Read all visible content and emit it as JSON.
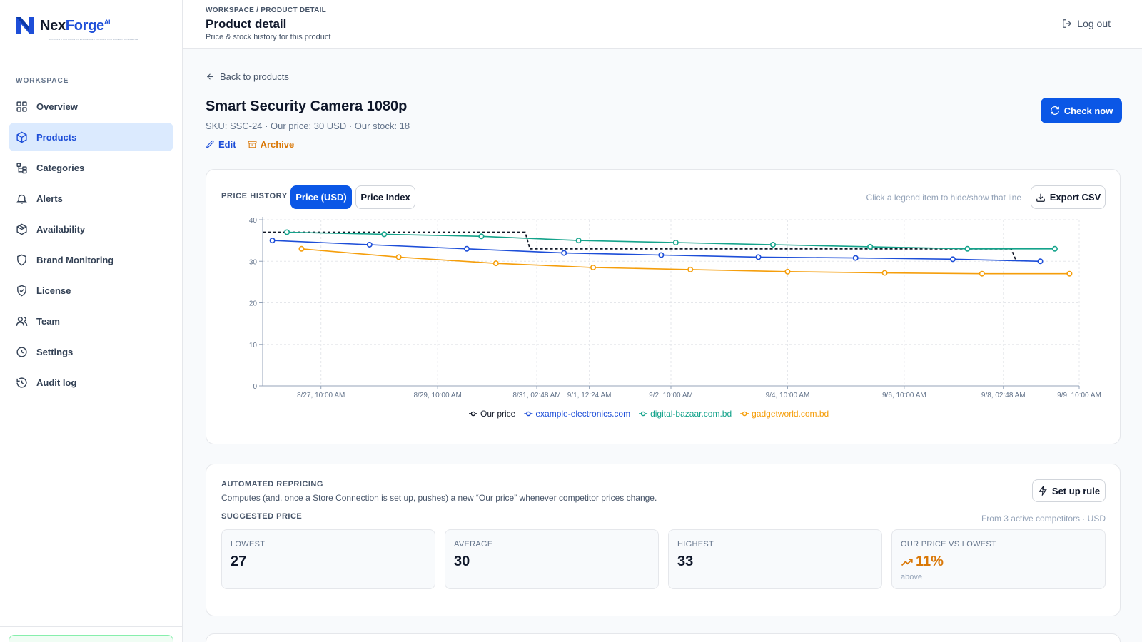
{
  "brand": {
    "name_a": "Nex",
    "name_b": "Forge",
    "suffix": "AI",
    "tagline": "AI COMPETITOR PRICE INTELLIGENCE PLATFORM FOR MODERN COMMERCE"
  },
  "sidebar": {
    "section": "WORKSPACE",
    "items": [
      {
        "label": "Overview",
        "icon": "grid-icon"
      },
      {
        "label": "Products",
        "icon": "box-icon",
        "active": true
      },
      {
        "label": "Categories",
        "icon": "tree-icon"
      },
      {
        "label": "Alerts",
        "icon": "bell-icon"
      },
      {
        "label": "Availability",
        "icon": "package-icon"
      },
      {
        "label": "Brand Monitoring",
        "icon": "shield-icon"
      },
      {
        "label": "License",
        "icon": "shield-check-icon"
      },
      {
        "label": "Team",
        "icon": "users-icon"
      },
      {
        "label": "Settings",
        "icon": "clock-icon"
      },
      {
        "label": "Audit log",
        "icon": "history-icon"
      }
    ]
  },
  "header": {
    "breadcrumb": "WORKSPACE / PRODUCT DETAIL",
    "title": "Product detail",
    "subtitle": "Price & stock history for this product",
    "logout": "Log out"
  },
  "product": {
    "back": "Back to products",
    "title": "Smart Security Camera 1080p",
    "meta": "SKU: SSC-24 · Our price: 30 USD · Our stock: 18",
    "edit": "Edit",
    "archive": "Archive",
    "check_now": "Check now"
  },
  "chart_panel": {
    "label": "PRICE HISTORY",
    "tab_active": "Price (USD)",
    "tab_inactive": "Price Index",
    "hint": "Click a legend item to hide/show that line",
    "export": "Export CSV"
  },
  "chart_data": {
    "type": "line",
    "ylim": [
      0,
      40
    ],
    "y_ticks": [
      0,
      10,
      20,
      30,
      40
    ],
    "x_ticks": [
      "8/27, 10:00 AM",
      "8/29, 10:00 AM",
      "8/31, 02:48 AM",
      "9/1, 12:24 AM",
      "9/2, 10:00 AM",
      "9/4, 10:00 AM",
      "9/6, 10:00 AM",
      "9/8, 02:48 AM",
      "9/9, 10:00 AM"
    ],
    "x_tick_hours": [
      24,
      72,
      112.8,
      134.4,
      168,
      216,
      264,
      304.8,
      336
    ],
    "x_range_hours": [
      0,
      336
    ],
    "grid": true,
    "legend": "bottom-center",
    "series": [
      {
        "name": "Our price",
        "color": "#111827",
        "dashed": true,
        "step": true,
        "x_hours": [
          0,
          2,
          108,
          110,
          210,
          308,
          310
        ],
        "values": [
          37,
          37,
          37,
          33,
          33,
          33,
          30.2
        ]
      },
      {
        "name": "example-electronics.com",
        "color": "#1d4ed8",
        "x_hours": [
          4,
          44,
          84,
          124,
          164,
          204,
          244,
          284,
          320
        ],
        "values": [
          35,
          34,
          33,
          32,
          31.5,
          31,
          30.8,
          30.5,
          30
        ]
      },
      {
        "name": "digital-bazaar.com.bd",
        "color": "#14a38b",
        "x_hours": [
          10,
          50,
          90,
          130,
          170,
          210,
          250,
          290,
          326
        ],
        "values": [
          37,
          36.5,
          36,
          35,
          34.5,
          34,
          33.5,
          33,
          33
        ]
      },
      {
        "name": "gadgetworld.com.bd",
        "color": "#f59e0b",
        "x_hours": [
          16,
          56,
          96,
          136,
          176,
          216,
          256,
          296,
          332
        ],
        "values": [
          33,
          31,
          29.5,
          28.5,
          28,
          27.5,
          27.2,
          27,
          27
        ]
      }
    ]
  },
  "repricing": {
    "title": "AUTOMATED REPRICING",
    "description": "Computes (and, once a Store Connection is set up, pushes) a new “Our price” whenever competitor prices change.",
    "setup": "Set up rule",
    "suggested_label": "SUGGESTED PRICE",
    "source": "From 3 active competitors · USD",
    "stats": [
      {
        "label": "LOWEST",
        "value": "27"
      },
      {
        "label": "AVERAGE",
        "value": "30"
      },
      {
        "label": "HIGHEST",
        "value": "33"
      },
      {
        "label": "OUR PRICE VS LOWEST",
        "value": "11%",
        "note": "above"
      }
    ]
  }
}
